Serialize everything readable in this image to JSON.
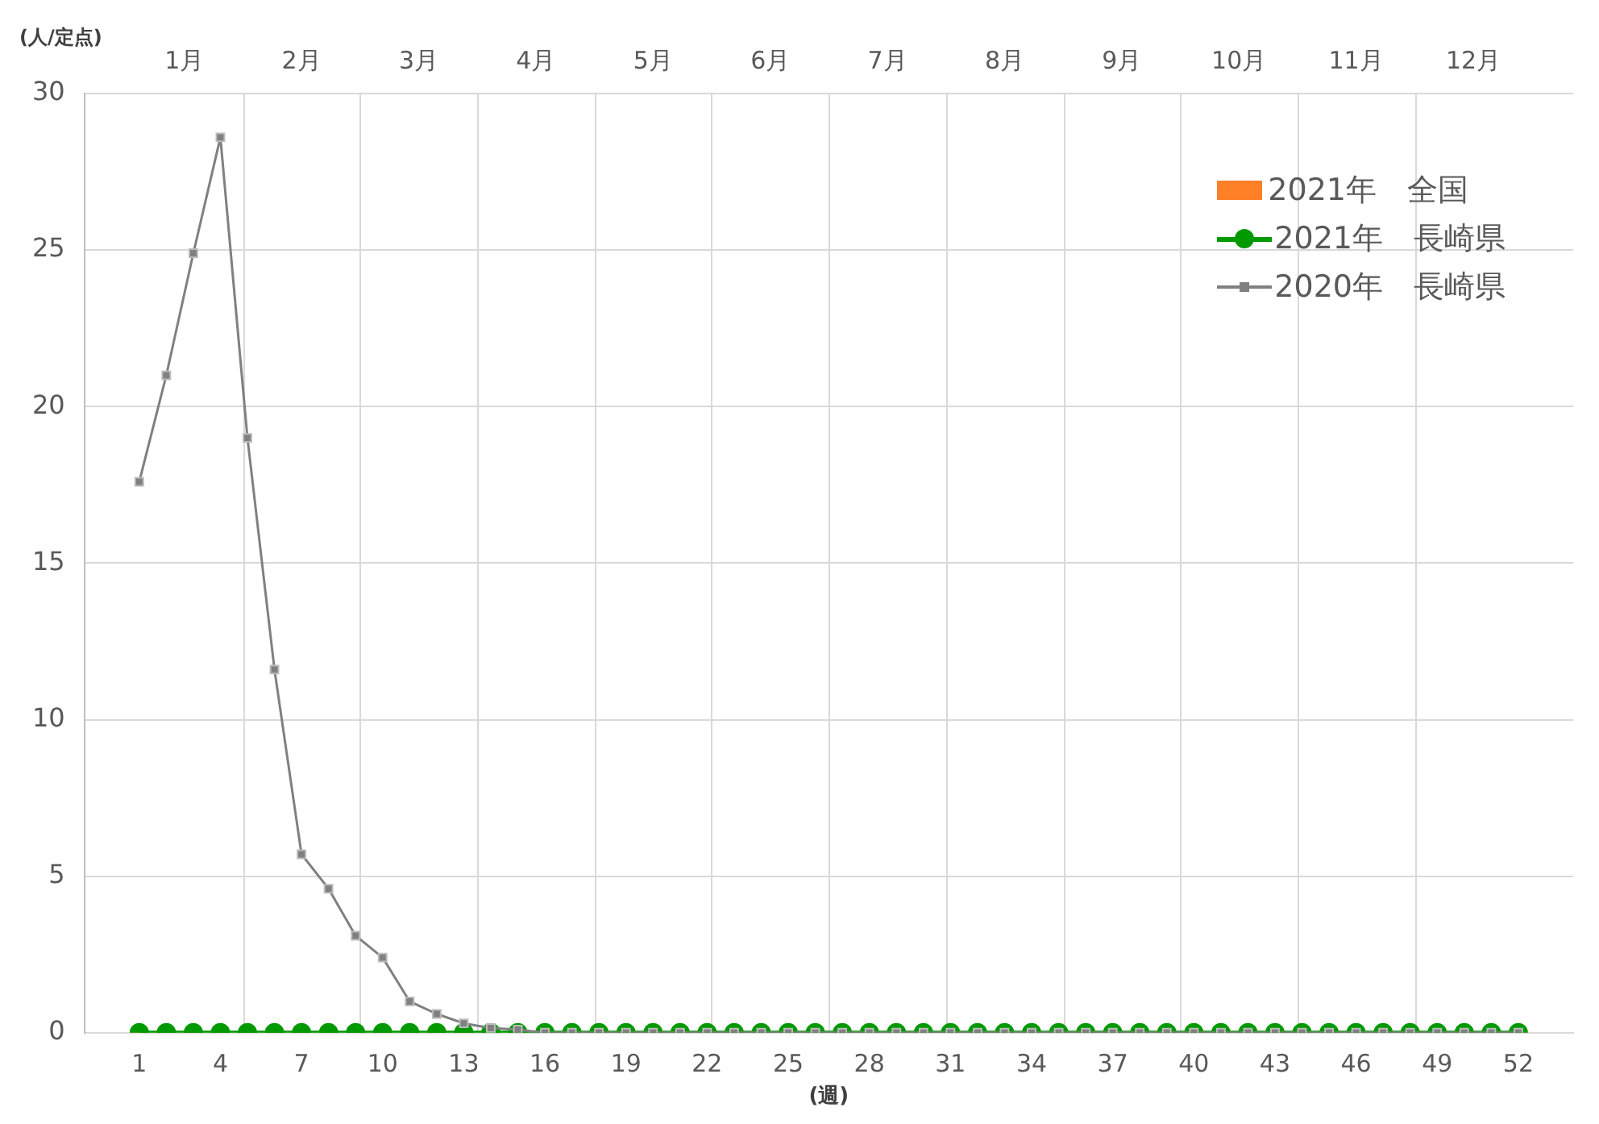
{
  "chart_data": {
    "type": "line",
    "ylabel": "(人/定点)",
    "xlabel": "(週)",
    "x": [
      1,
      2,
      3,
      4,
      5,
      6,
      7,
      8,
      9,
      10,
      11,
      12,
      13,
      14,
      15,
      16,
      17,
      18,
      19,
      20,
      21,
      22,
      23,
      24,
      25,
      26,
      27,
      28,
      29,
      30,
      31,
      32,
      33,
      34,
      35,
      36,
      37,
      38,
      39,
      40,
      41,
      42,
      43,
      44,
      45,
      46,
      47,
      48,
      49,
      50,
      51,
      52
    ],
    "series": [
      {
        "name": "2021年　全国",
        "type": "bar",
        "color": "#ff7f27",
        "values": [
          0,
          0,
          0,
          0,
          0,
          0,
          0,
          0,
          0,
          0,
          0,
          0,
          0,
          0,
          0,
          0,
          0,
          0,
          0,
          0,
          0,
          0,
          0,
          0,
          0,
          0,
          0,
          0,
          0,
          0,
          0,
          0,
          0,
          0,
          0,
          0,
          0,
          0,
          0,
          0,
          0,
          0,
          0,
          0,
          0,
          0,
          0,
          0,
          0,
          0,
          0,
          0
        ]
      },
      {
        "name": "2021年　長崎県",
        "color": "#009900",
        "marker": "circle",
        "values": [
          0,
          0,
          0,
          0,
          0,
          0,
          0,
          0,
          0,
          0,
          0,
          0,
          0,
          0,
          0,
          0,
          0,
          0,
          0,
          0,
          0,
          0,
          0,
          0,
          0,
          0,
          0,
          0,
          0,
          0,
          0,
          0,
          0,
          0,
          0,
          0,
          0,
          0,
          0,
          0,
          0,
          0,
          0,
          0,
          0,
          0,
          0,
          0,
          0,
          0,
          0,
          0
        ]
      },
      {
        "name": "2020年　長崎県",
        "color": "#808080",
        "marker": "square",
        "values": [
          17.6,
          21.0,
          24.9,
          28.6,
          19.0,
          11.6,
          5.7,
          4.6,
          3.1,
          2.4,
          1.0,
          0.6,
          0.3,
          0.15,
          0.1,
          0,
          0,
          0,
          0,
          0,
          0,
          0,
          0,
          0,
          0,
          0,
          0,
          0,
          0,
          0,
          0,
          0,
          0,
          0,
          0,
          0,
          0,
          0,
          0,
          0,
          0,
          0,
          0,
          0,
          0,
          0,
          0,
          0,
          0,
          0,
          0,
          0
        ]
      }
    ],
    "xlim": [
      0.5,
      52.5
    ],
    "xticks": [
      1,
      4,
      7,
      10,
      13,
      16,
      19,
      22,
      25,
      28,
      31,
      34,
      37,
      40,
      43,
      46,
      49,
      52
    ],
    "annotations": [
      "1月",
      "2月",
      "3月",
      "4月",
      "5月",
      "6月",
      "7月",
      "8月",
      "9月",
      "10月",
      "11月",
      "12月"
    ],
    "ylim": [
      0,
      30
    ],
    "yticks": [
      0,
      5,
      10,
      15,
      20,
      25,
      30
    ],
    "grid": true,
    "legend": "top right"
  }
}
